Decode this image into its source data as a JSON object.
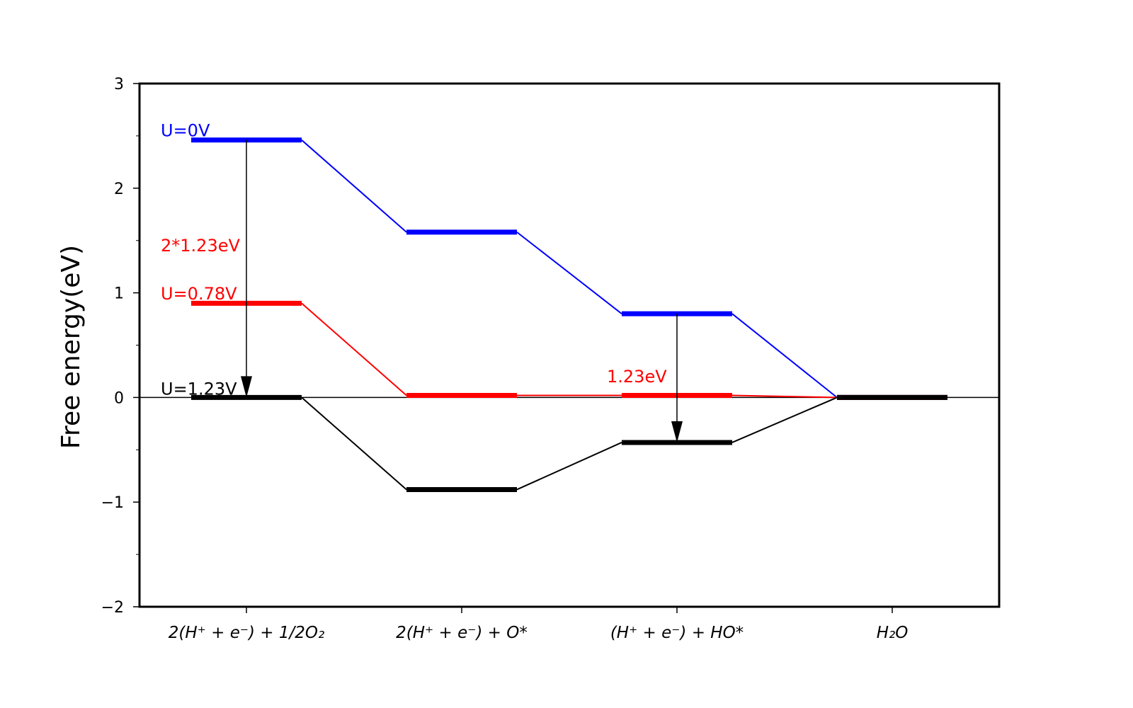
{
  "chart_data": {
    "type": "line",
    "ylabel": "Free energy(eV)",
    "ylim": [
      -2,
      3
    ],
    "yticks": [
      -2,
      -1,
      0,
      1,
      2,
      3
    ],
    "ytick_labels": [
      "−2",
      "−1",
      "0",
      "1",
      "2",
      "3"
    ],
    "categories": [
      "2(H⁺ + e⁻) + 1/2O₂",
      "2(H⁺ + e⁻) + O*",
      "(H⁺ + e⁻) + HO*",
      "H₂O"
    ],
    "grid": false,
    "zero_line": true,
    "series": [
      {
        "name": "U=0V",
        "color": "#0000ff",
        "values": [
          2.46,
          1.58,
          0.8,
          0.0
        ]
      },
      {
        "name": "U=0.78V",
        "color": "#ff0000",
        "values": [
          0.9,
          0.02,
          0.02,
          0.0
        ]
      },
      {
        "name": "U=1.23V",
        "color": "#000000",
        "values": [
          0.0,
          -0.88,
          -0.43,
          0.0
        ]
      }
    ],
    "annotations": [
      {
        "text": "U=0V",
        "color": "#0000ff",
        "x": 0,
        "y": 2.55
      },
      {
        "text": "2*1.23eV",
        "color": "#ff0000",
        "x": 0,
        "y": 1.45
      },
      {
        "text": "U=0.78V",
        "color": "#ff0000",
        "x": 0,
        "y": 0.99
      },
      {
        "text": "U=1.23V",
        "color": "#000000",
        "x": 0,
        "y": 0.08
      },
      {
        "text": "1.23eV",
        "color": "#ff0000",
        "x": 2,
        "y": 0.2
      }
    ],
    "arrows": [
      {
        "x": 0,
        "from": 2.46,
        "to": 0.0
      },
      {
        "x": 2,
        "from": 0.8,
        "to": -0.43
      }
    ]
  }
}
